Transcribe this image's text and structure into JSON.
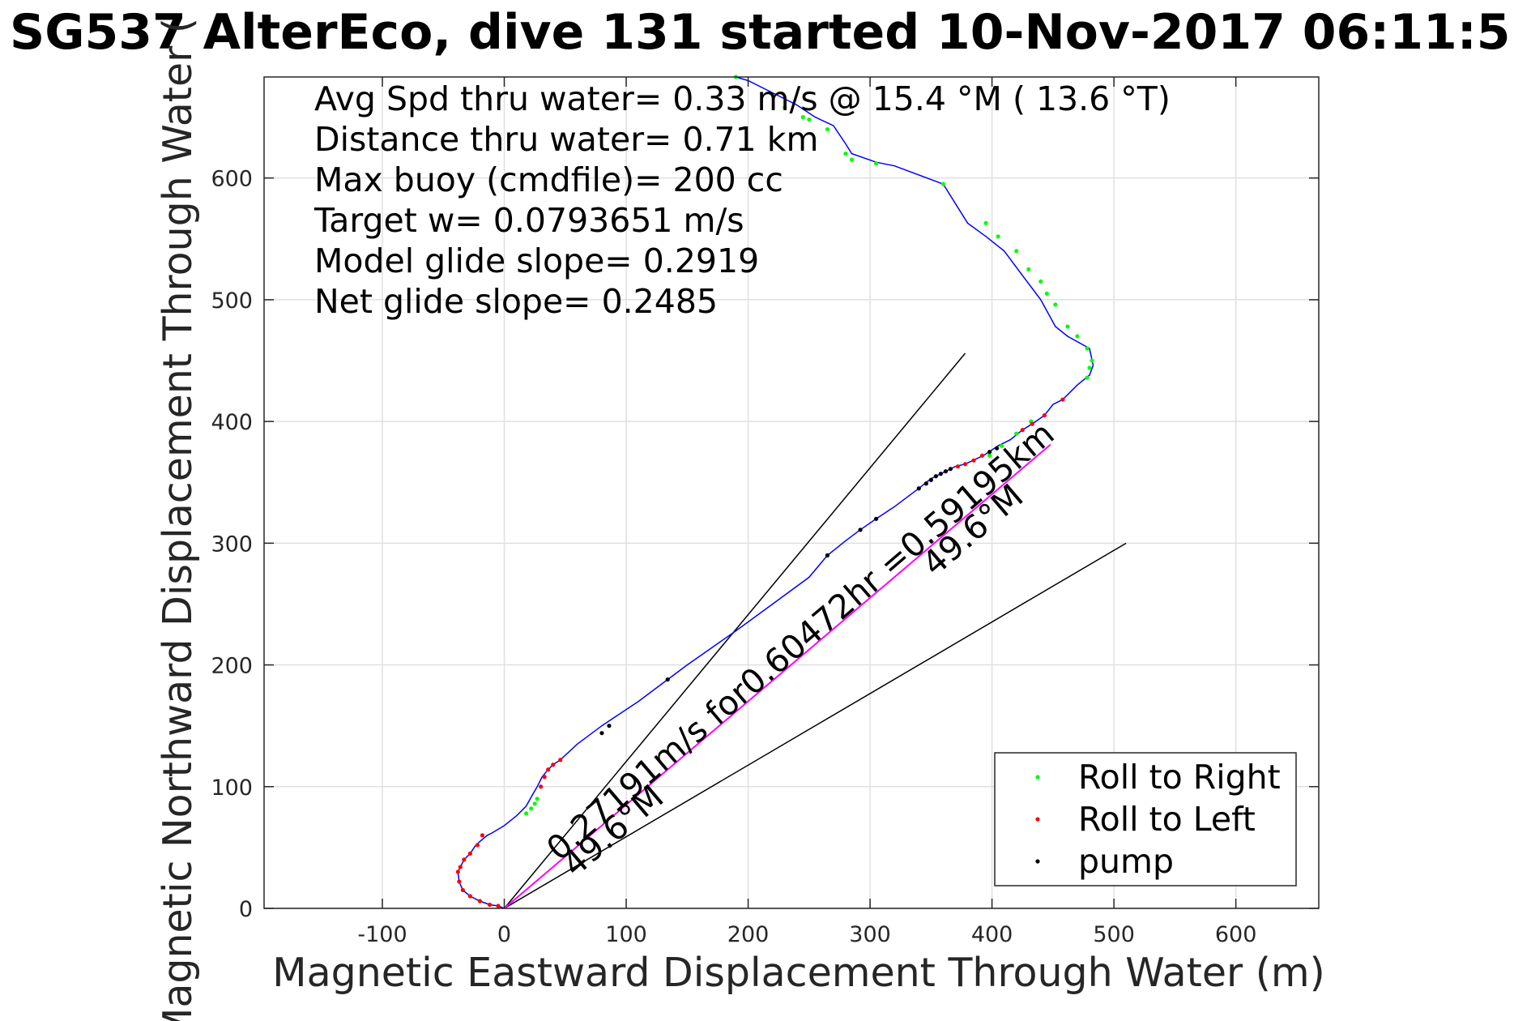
{
  "chart_data": {
    "type": "scatter",
    "title": "SG537 AlterEco, dive 131 started 10-Nov-2017 06:11:5",
    "xlabel": "Magnetic Eastward Displacement Through Water (m)",
    "ylabel": "Magnetic Northward Displacement Through Water (",
    "xlim": [
      -197,
      668
    ],
    "ylim": [
      0,
      683
    ],
    "xticks": [
      -100,
      0,
      100,
      200,
      300,
      400,
      500,
      600
    ],
    "yticks": [
      0,
      100,
      200,
      300,
      400,
      500,
      600
    ],
    "xtick_labels": [
      "-100",
      "0",
      "100",
      "200",
      "300",
      "400",
      "500",
      "600"
    ],
    "ytick_labels": [
      "0",
      "100",
      "200",
      "300",
      "400",
      "500",
      "600"
    ],
    "grid": true,
    "legend_position": "bottom-right",
    "info_lines": [
      "Avg Spd thru water=  0.33 m/s @  15.4 °M ( 13.6 °T)",
      "Distance thru water=  0.71 km",
      "Max buoy (cmdfile)= 200 cc",
      "Target w= 0.0793651 m/s",
      "Model glide slope= 0.2919",
      "Net glide slope= 0.2485"
    ],
    "annotations": [
      {
        "text": "0.27191m/s for0.60472hr =0.59195km",
        "x": 45,
        "y": 38,
        "angle_deg": 40.5
      },
      {
        "text": "49.6°M",
        "x": 58,
        "y": 25,
        "angle_deg": 40.5
      },
      {
        "text": "49.6°M",
        "x": 353,
        "y": 272,
        "angle_deg": 40.5
      }
    ],
    "colors": {
      "track": "#0000ff",
      "net": "#ff00ff",
      "reference_lines": "#000000",
      "roll_right": "#00ff00",
      "roll_left": "#ff0000",
      "pump": "#000000",
      "grid": "#e0e0e0"
    },
    "reference_lines": [
      {
        "x": [
          0,
          378
        ],
        "y": [
          0,
          456
        ]
      },
      {
        "x": [
          0,
          510
        ],
        "y": [
          0,
          300
        ]
      }
    ],
    "net_line": {
      "x": [
        0,
        448
      ],
      "y": [
        0,
        381
      ]
    },
    "track": {
      "x": [
        0,
        -5,
        -12,
        -20,
        -28,
        -34,
        -37,
        -38,
        -36,
        -33,
        -28,
        -24,
        -20,
        -14,
        -10,
        0,
        10,
        18,
        23,
        27,
        31,
        36,
        40,
        46,
        60,
        80,
        110,
        134,
        150,
        190,
        220,
        250,
        265,
        280,
        292,
        305,
        320,
        340,
        350,
        360,
        370,
        378,
        393,
        405,
        415,
        425,
        433,
        443,
        450,
        458,
        470,
        480,
        483,
        480,
        462,
        452,
        440,
        425,
        410,
        395,
        380,
        360,
        320,
        305,
        285,
        280,
        270,
        255,
        240,
        220,
        200,
        190
      ],
      "y": [
        0,
        2,
        3,
        6,
        10,
        15,
        22,
        30,
        34,
        40,
        45,
        51,
        55,
        60,
        62,
        68,
        76,
        84,
        93,
        100,
        108,
        114,
        118,
        122,
        135,
        150,
        170,
        188,
        200,
        228,
        250,
        272,
        290,
        302,
        311,
        320,
        330,
        345,
        353,
        358,
        363,
        365,
        372,
        380,
        385,
        393,
        398,
        405,
        414,
        418,
        430,
        438,
        446,
        460,
        470,
        478,
        500,
        520,
        540,
        552,
        563,
        595,
        610,
        613,
        620,
        628,
        643,
        650,
        660,
        670,
        680,
        683
      ]
    },
    "series": [
      {
        "name": "Roll to Right",
        "color": "#00ff00",
        "x": [
          18,
          22,
          25,
          27,
          398,
          408,
          420,
          432,
          478,
          480,
          482,
          478,
          470,
          462,
          452,
          445,
          440,
          430,
          420,
          405,
          395,
          360,
          305,
          285,
          280,
          265,
          250,
          245,
          230,
          190
        ],
        "y": [
          78,
          82,
          86,
          90,
          372,
          380,
          390,
          400,
          436,
          444,
          450,
          460,
          470,
          478,
          496,
          505,
          515,
          525,
          540,
          552,
          563,
          595,
          612,
          615,
          620,
          640,
          648,
          650,
          658,
          683
        ]
      },
      {
        "name": "Roll to Left",
        "color": "#ff0000",
        "x": [
          -5,
          -12,
          -20,
          -28,
          -34,
          -37,
          -38,
          -36,
          -33,
          -28,
          -22,
          -18,
          30,
          33,
          36,
          40,
          46,
          372,
          378,
          385,
          392,
          425,
          433,
          443,
          458
        ],
        "y": [
          2,
          3,
          6,
          10,
          15,
          22,
          30,
          34,
          40,
          45,
          52,
          60,
          100,
          108,
          114,
          118,
          122,
          363,
          365,
          368,
          372,
          393,
          398,
          405,
          418
        ]
      },
      {
        "name": "pump",
        "color": "#000000",
        "x": [
          80,
          86,
          134,
          265,
          292,
          305,
          340,
          346,
          350,
          354,
          358,
          362,
          366,
          398,
          404
        ],
        "y": [
          144,
          150,
          188,
          290,
          311,
          320,
          345,
          349,
          352,
          355,
          357,
          359,
          361,
          375,
          378
        ]
      }
    ]
  }
}
